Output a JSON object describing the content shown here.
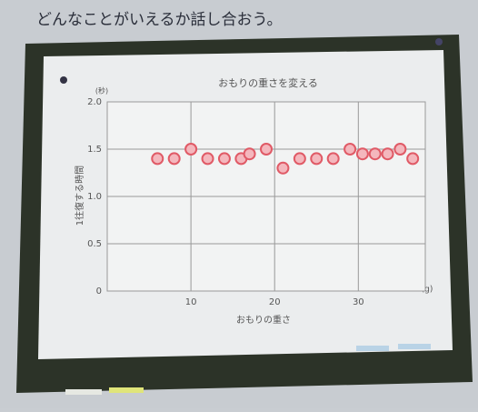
{
  "instruction": "どんなことがいえるか話し合おう。",
  "chart_data": {
    "type": "scatter",
    "title": "おもりの重さを変える",
    "xlabel": "おもりの重さ",
    "ylabel": "1往復する時間",
    "xunit": "(g)",
    "yunit": "(秒)",
    "x": [
      6,
      8,
      10,
      12,
      14,
      16,
      17,
      19,
      21,
      23,
      25,
      27,
      29,
      30.5,
      32,
      33.5,
      35,
      36.5
    ],
    "values": [
      1.4,
      1.4,
      1.5,
      1.4,
      1.4,
      1.4,
      1.45,
      1.5,
      1.3,
      1.4,
      1.4,
      1.4,
      1.5,
      1.45,
      1.45,
      1.45,
      1.5,
      1.4
    ],
    "color": "#e05a66",
    "xlim": [
      0,
      38
    ],
    "xticks": [
      10,
      20,
      30
    ],
    "ylim": [
      0,
      2
    ],
    "yticks": [
      0,
      0.5,
      {
        "value": 1,
        "label": "1.0"
      },
      1.5,
      {
        "value": 2,
        "label": "2.0"
      }
    ],
    "grid": true
  }
}
